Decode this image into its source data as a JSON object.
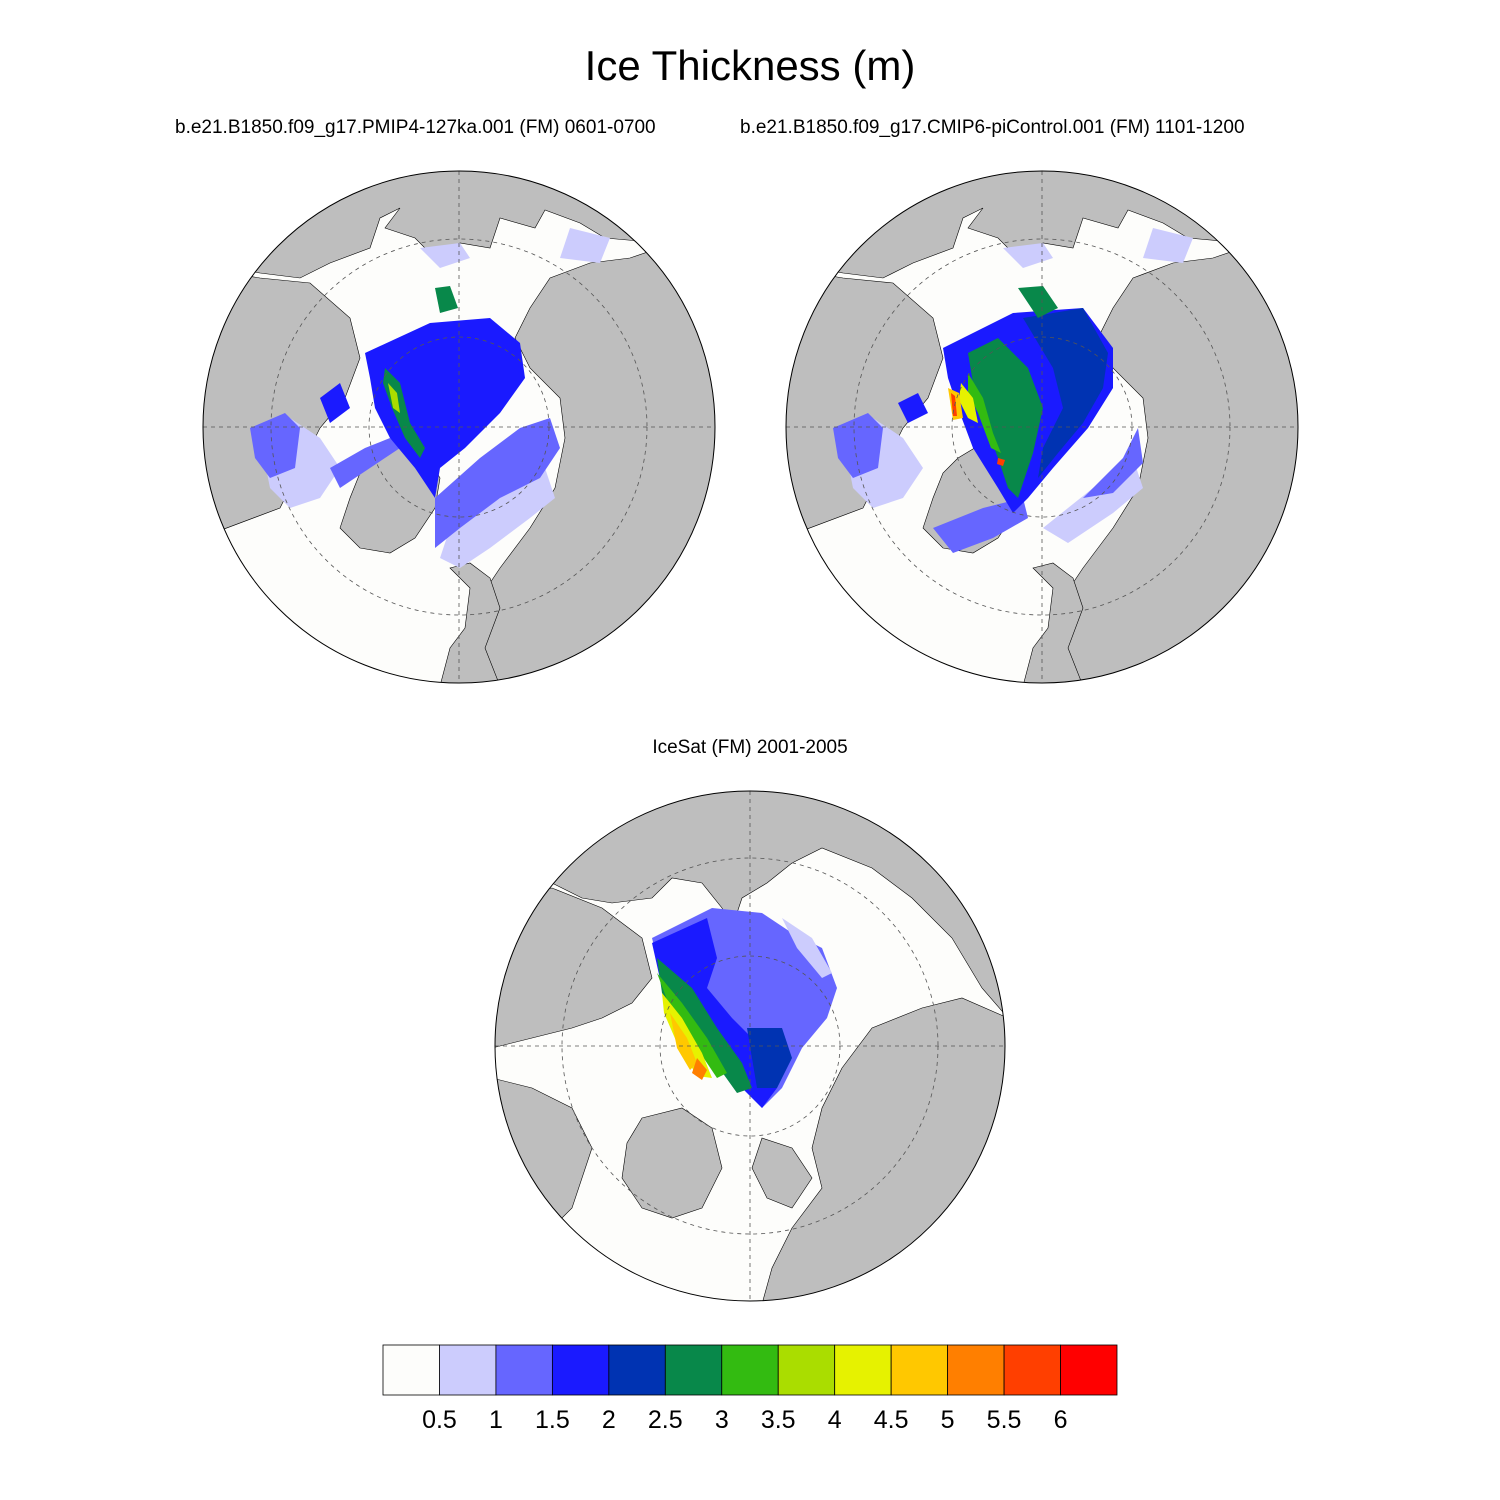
{
  "title": "Ice Thickness (m)",
  "panels": [
    {
      "title": "b.e21.B1850.f09_g17.PMIP4-127ka.001 (FM) 0601-0700"
    },
    {
      "title": "b.e21.B1850.f09_g17.CMIP6-piControl.001 (FM) 1101-1200"
    },
    {
      "title": "IceSat (FM) 2001-2005"
    }
  ],
  "colorbar": {
    "labels": [
      "0.5",
      "1",
      "1.5",
      "2",
      "2.5",
      "3",
      "3.5",
      "4",
      "4.5",
      "5",
      "5.5",
      "6"
    ],
    "colors": [
      "#fdfdfb",
      "#ccccfd",
      "#6666ff",
      "#1a1aff",
      "#0033b2",
      "#08884a",
      "#33bb11",
      "#aadd00",
      "#e6f200",
      "#ffc800",
      "#ff7f00",
      "#ff3f00",
      "#ff0000"
    ]
  },
  "map_colors": {
    "land": "#bebebe",
    "ocean": "#fdfdfb",
    "outline": "#000000"
  }
}
